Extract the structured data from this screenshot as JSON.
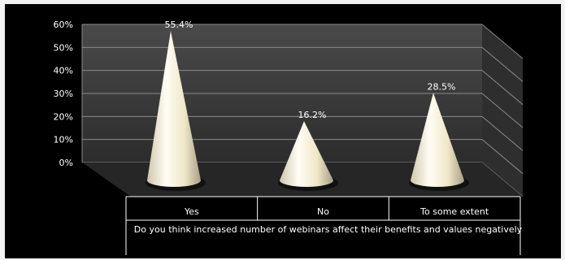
{
  "chart_data": {
    "type": "bar",
    "subtype": "3d-cone",
    "categories": [
      "Yes",
      "No",
      "To some extent"
    ],
    "values": [
      55.4,
      16.2,
      28.5
    ],
    "data_labels": [
      "55.4%",
      "16.2%",
      "28.5%"
    ],
    "title": "",
    "xlabel": "Do you think increased number of webinars affect their benefits and values negatively",
    "ylabel": "",
    "ylim": [
      0,
      60
    ],
    "yticks": [
      "0%",
      "10%",
      "20%",
      "30%",
      "40%",
      "50%",
      "60%"
    ],
    "grid": true,
    "legend": "none",
    "colors": {
      "background": "#000000",
      "back_wall": "#3a3a3a",
      "floor": "#262626",
      "cone": "#f2ead2",
      "text": "#ffffff"
    }
  }
}
